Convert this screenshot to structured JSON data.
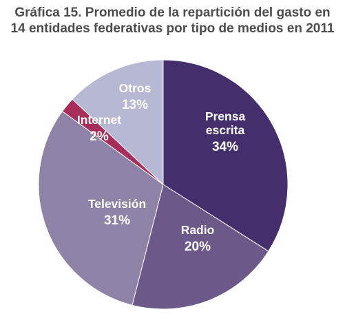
{
  "chart_data": {
    "type": "pie",
    "title_lines": [
      "Gráfica 15. Promedio de la repartición del gasto en",
      "14 entidades federativas por tipo de medios en 2011"
    ],
    "start_angle_deg": 0,
    "direction": "clockwise",
    "slices": [
      {
        "label_lines": [
          "Prensa",
          "escrita"
        ],
        "value": 34,
        "value_label": "34%",
        "color": "#442e6c"
      },
      {
        "label_lines": [
          "Radio"
        ],
        "value": 20,
        "value_label": "20%",
        "color": "#6c5889"
      },
      {
        "label_lines": [
          "Televisión"
        ],
        "value": 31,
        "value_label": "31%",
        "color": "#8f82a7"
      },
      {
        "label_lines": [
          "Internet"
        ],
        "value": 2,
        "value_label": "2%",
        "color": "#a72e5a"
      },
      {
        "label_lines": [
          "Otros"
        ],
        "value": 13,
        "value_label": "13%",
        "color": "#b6b8d4"
      }
    ]
  }
}
